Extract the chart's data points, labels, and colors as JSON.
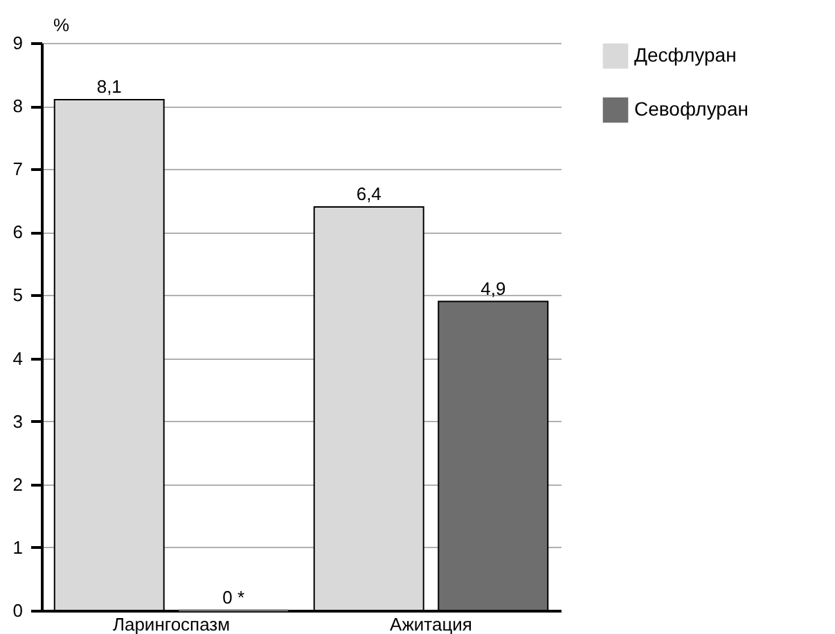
{
  "chart_data": {
    "type": "bar",
    "ylabel": "%",
    "categories": [
      "Ларингоспазм",
      "Ажитация"
    ],
    "series": [
      {
        "name": "Десфлуран",
        "color": "#d9d9d9",
        "values": [
          8.1,
          6.4
        ],
        "value_labels": [
          "8,1",
          "6,4"
        ]
      },
      {
        "name": "Севофлуран",
        "color": "#6e6e6e",
        "values": [
          0,
          4.9
        ],
        "value_labels": [
          "0 *",
          "4,9"
        ]
      }
    ],
    "ylim": [
      0,
      9
    ],
    "yticks": [
      0,
      1,
      2,
      3,
      4,
      5,
      6,
      7,
      8,
      9
    ],
    "grid": "y",
    "legend": "right"
  }
}
